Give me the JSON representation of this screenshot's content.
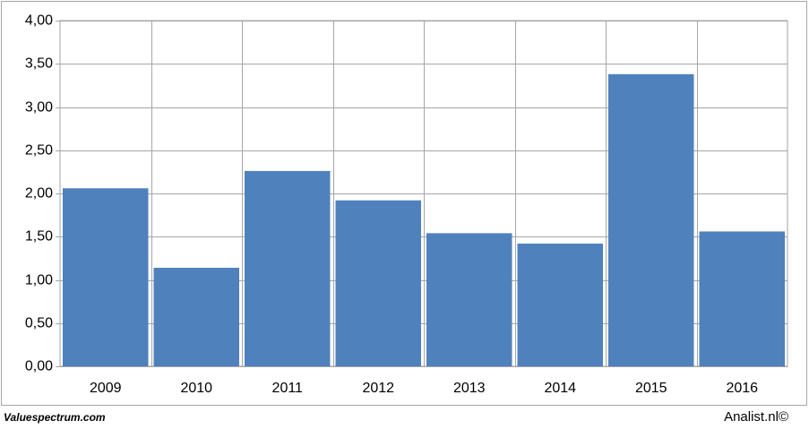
{
  "chart_data": {
    "type": "bar",
    "categories": [
      "2009",
      "2010",
      "2011",
      "2012",
      "2013",
      "2014",
      "2015",
      "2016"
    ],
    "values": [
      2.06,
      1.14,
      2.26,
      1.92,
      1.54,
      1.42,
      3.38,
      1.56
    ],
    "color": "#4f81bd",
    "ylim": [
      0,
      4
    ],
    "yticks": [
      {
        "value": 0,
        "label": "0,00"
      },
      {
        "value": 0.5,
        "label": "0,50"
      },
      {
        "value": 1,
        "label": "1,00"
      },
      {
        "value": 1.5,
        "label": "1,50"
      },
      {
        "value": 2,
        "label": "2,00"
      },
      {
        "value": 2.5,
        "label": "2,50"
      },
      {
        "value": 3,
        "label": "3,00"
      },
      {
        "value": 3.5,
        "label": "3,50"
      },
      {
        "value": 4,
        "label": "4,00"
      }
    ],
    "grid": true
  },
  "footer": {
    "left": "Valuespectrum.com",
    "right": "Analist.nl©"
  }
}
